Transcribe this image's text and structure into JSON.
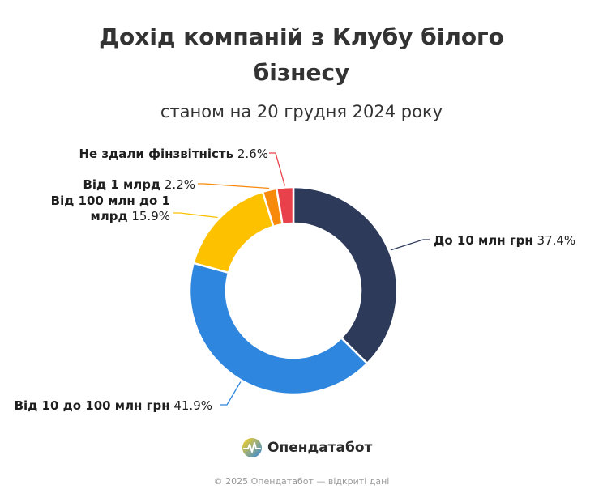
{
  "title_line1": "Дохід компаній з Клубу білого",
  "title_line2": "бізнесу",
  "subtitle": "станом на 20 грудня 2024 року",
  "brand": {
    "name": "Опендатабот",
    "logo_icon": "opendatabot-logo-icon"
  },
  "footer": "© 2025 Опендатабот — відкриті дані",
  "chart_data": {
    "type": "pie",
    "donut": true,
    "start_angle_deg": 0,
    "direction": "clockwise",
    "slices": [
      {
        "label": "До 10 млн грн",
        "label_lines": [
          "До 10 млн грн"
        ],
        "value": 37.4,
        "value_text": "37.4%",
        "color": "#2d3a5a",
        "label_side": "right"
      },
      {
        "label": "Від 10 до 100 млн грн",
        "label_lines": [
          "Від 10 до 100 млн грн"
        ],
        "value": 41.9,
        "value_text": "41.9%",
        "color": "#2f86de",
        "label_side": "left"
      },
      {
        "label": "Від 100 млн до 1 млрд",
        "label_lines": [
          "Від 100 млн до 1",
          "млрд"
        ],
        "value": 15.9,
        "value_text": "15.9%",
        "color": "#fdc100",
        "label_side": "left"
      },
      {
        "label": "Від 1 млрд",
        "label_lines": [
          "Від 1 млрд"
        ],
        "value": 2.2,
        "value_text": "2.2%",
        "color": "#f7890c",
        "label_side": "left"
      },
      {
        "label": "Не здали фінзвітність",
        "label_lines": [
          "Не здали фінзвітність"
        ],
        "value": 2.6,
        "value_text": "2.6%",
        "color": "#e8414b",
        "label_side": "left"
      }
    ]
  }
}
